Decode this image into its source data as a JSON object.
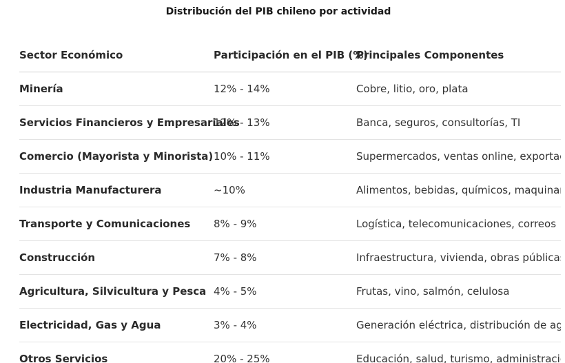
{
  "title": "Distribución del PIB chileno por actividad",
  "table": {
    "headers": [
      "Sector Económico",
      "Participación en el PIB (%)",
      "Principales Componentes"
    ],
    "rows": [
      [
        "Minería",
        "12% - 14%",
        "Cobre, litio, oro, plata"
      ],
      [
        "Servicios Financieros y Empresariales",
        "12% - 13%",
        "Banca, seguros, consultorías, TI"
      ],
      [
        "Comercio (Mayorista y Minorista)",
        "10% - 11%",
        "Supermercados, ventas online, exportaciones"
      ],
      [
        "Industria Manufacturera",
        "~10%",
        "Alimentos, bebidas, químicos, maquinaria"
      ],
      [
        "Transporte y Comunicaciones",
        "8% - 9%",
        "Logística, telecomunicaciones, correos"
      ],
      [
        "Construcción",
        "7% - 8%",
        "Infraestructura, vivienda, obras públicas"
      ],
      [
        "Agricultura, Silvicultura y Pesca",
        "4% - 5%",
        "Frutas, vino, salmón, celulosa"
      ],
      [
        "Electricidad, Gas y Agua",
        "3% - 4%",
        "Generación eléctrica, distribución de agua"
      ],
      [
        "Otros Servicios",
        "20% - 25%",
        "Educación, salud, turismo, administración pública"
      ]
    ]
  }
}
